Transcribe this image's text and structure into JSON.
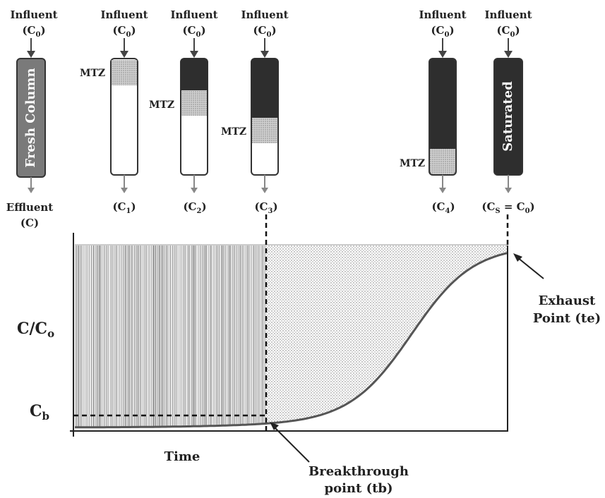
{
  "columns": {
    "influent_label": "Influent",
    "influent_conc": "(C",
    "influent_sub": "0",
    "fresh_column": "Fresh Column",
    "saturated": "Saturated",
    "mtz": "MTZ",
    "effluent_label": "Effluent",
    "effluent_conc": "(C)",
    "c1": "(C",
    "c1_sub": "1",
    "c2": "(C",
    "c2_sub": "2",
    "c3": "(C",
    "c3_sub": "3",
    "c4": "(C",
    "c4_sub": "4",
    "cs_open": "(C",
    "cs_sub": "S",
    "cs_mid": " = C",
    "cs_sub2": "0"
  },
  "chart": {
    "ylabel": "C/C",
    "ylabel_sub": "o",
    "cb": "C",
    "cb_sub": "b",
    "xlabel": "Time",
    "breakthrough": "Breakthrough",
    "breakthrough2": "point (tb)",
    "exhaust": "Exhaust",
    "exhaust2": "Point (te)"
  },
  "colors": {
    "dark": "#2e2e2e",
    "fresh": "#7a7a7a",
    "mtz": "#c8c8c8",
    "curve": "#555555"
  }
}
